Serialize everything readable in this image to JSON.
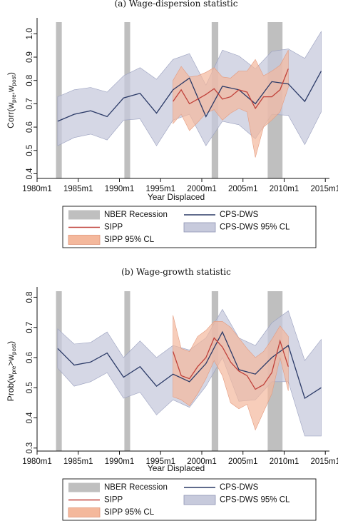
{
  "chart_data": [
    {
      "type": "line",
      "title": "(a) Wage-dispersion statistic",
      "xlabel": "Year Displaced",
      "ylabel_parts": [
        "Corr(w",
        "pre",
        ",w",
        "post",
        ")"
      ],
      "xlim": [
        1980,
        2015.5
      ],
      "ylim": [
        0.38,
        1.05
      ],
      "xticks": [
        1980,
        1985,
        1990,
        1995,
        2000,
        2005,
        2010,
        2015
      ],
      "xtick_labels": [
        "1980m1",
        "1985m1",
        "1990m1",
        "1995m1",
        "2000m1",
        "2005m1",
        "2010m1",
        "2015m1"
      ],
      "yticks": [
        0.4,
        0.5,
        0.6,
        0.7,
        0.8,
        0.9,
        1.0
      ],
      "ytick_labels": [
        "0.4",
        "0.5",
        "0.6",
        "0.7",
        "0.8",
        "0.9",
        "1.0"
      ],
      "recessions": [
        [
          1982.3,
          1983.0
        ],
        [
          1990.6,
          1991.3
        ],
        [
          2001.2,
          2002.0
        ],
        [
          2008.0,
          2009.8
        ]
      ],
      "series": [
        {
          "name": "CPS-DWS",
          "role": "line",
          "color": "#2b3a67",
          "x": [
            1982.5,
            1984.5,
            1986.5,
            1988.5,
            1990.5,
            1992.5,
            1994.5,
            1996.5,
            1998.5,
            2000.5,
            2002.5,
            2004.5,
            2006.5,
            2008.5,
            2010.5,
            2012.5,
            2014.5
          ],
          "y": [
            0.625,
            0.655,
            0.67,
            0.645,
            0.725,
            0.745,
            0.66,
            0.76,
            0.81,
            0.645,
            0.775,
            0.76,
            0.7,
            0.795,
            0.785,
            0.71,
            0.84
          ],
          "lower": [
            0.52,
            0.555,
            0.57,
            0.545,
            0.63,
            0.635,
            0.52,
            0.63,
            0.655,
            0.52,
            0.625,
            0.61,
            0.55,
            0.655,
            0.65,
            0.525,
            0.665
          ],
          "upper": [
            0.73,
            0.76,
            0.77,
            0.75,
            0.82,
            0.855,
            0.805,
            0.89,
            0.915,
            0.78,
            0.93,
            0.905,
            0.85,
            0.925,
            0.935,
            0.895,
            1.01
          ]
        },
        {
          "name": "SIPP",
          "role": "line",
          "color": "#c0413a",
          "x": [
            1996.5,
            1997.5,
            1998.5,
            1999.5,
            2000.5,
            2001.5,
            2002.5,
            2003.5,
            2004.5,
            2005.5,
            2006.5,
            2007.5,
            2008.5,
            2009.5,
            2010.5
          ],
          "y": [
            0.71,
            0.76,
            0.7,
            0.72,
            0.74,
            0.765,
            0.72,
            0.73,
            0.76,
            0.75,
            0.68,
            0.73,
            0.73,
            0.76,
            0.85
          ],
          "lower": [
            0.615,
            0.655,
            0.585,
            0.62,
            0.66,
            0.675,
            0.63,
            0.66,
            0.68,
            0.665,
            0.47,
            0.6,
            0.63,
            0.665,
            0.77
          ],
          "upper": [
            0.8,
            0.86,
            0.815,
            0.82,
            0.835,
            0.855,
            0.815,
            0.81,
            0.84,
            0.84,
            0.89,
            0.82,
            0.84,
            0.865,
            0.93
          ]
        }
      ],
      "legend": [
        {
          "key": "nber",
          "label": "NBER Recession"
        },
        {
          "key": "cps",
          "label": "CPS-DWS"
        },
        {
          "key": "sipp",
          "label": "SIPP"
        },
        {
          "key": "cpsci",
          "label": "CPS-DWS 95% CL"
        },
        {
          "key": "sippci",
          "label": "SIPP 95% CL"
        }
      ]
    },
    {
      "type": "line",
      "title": "(b) Wage-growth statistic",
      "xlabel": "Year Displaced",
      "ylabel_parts": [
        "Prob(w",
        "pre",
        ">w",
        "post",
        ")"
      ],
      "xlim": [
        1980,
        2015.5
      ],
      "ylim": [
        0.29,
        0.82
      ],
      "xticks": [
        1980,
        1985,
        1990,
        1995,
        2000,
        2005,
        2010,
        2015
      ],
      "xtick_labels": [
        "1980m1",
        "1985m1",
        "1990m1",
        "1995m1",
        "2000m1",
        "2005m1",
        "2010m1",
        "2015m1"
      ],
      "yticks": [
        0.3,
        0.4,
        0.5,
        0.6,
        0.7,
        0.8
      ],
      "ytick_labels": [
        "0.3",
        "0.4",
        "0.5",
        "0.6",
        "0.7",
        "0.8"
      ],
      "recessions": [
        [
          1982.3,
          1983.0
        ],
        [
          1990.6,
          1991.3
        ],
        [
          2001.2,
          2002.0
        ],
        [
          2008.0,
          2009.8
        ]
      ],
      "series": [
        {
          "name": "CPS-DWS",
          "role": "line",
          "color": "#2b3a67",
          "x": [
            1982.5,
            1984.5,
            1986.5,
            1988.5,
            1990.5,
            1992.5,
            1994.5,
            1996.5,
            1998.5,
            2000.5,
            2002.5,
            2004.5,
            2006.5,
            2008.5,
            2010.5,
            2012.5,
            2014.5
          ],
          "y": [
            0.63,
            0.575,
            0.585,
            0.615,
            0.535,
            0.57,
            0.505,
            0.545,
            0.52,
            0.58,
            0.685,
            0.56,
            0.545,
            0.6,
            0.64,
            0.465,
            0.5
          ],
          "lower": [
            0.565,
            0.505,
            0.52,
            0.55,
            0.465,
            0.485,
            0.41,
            0.46,
            0.435,
            0.505,
            0.6,
            0.455,
            0.46,
            0.52,
            0.52,
            0.34,
            0.34
          ],
          "upper": [
            0.695,
            0.645,
            0.65,
            0.685,
            0.6,
            0.655,
            0.6,
            0.64,
            0.625,
            0.665,
            0.76,
            0.665,
            0.64,
            0.715,
            0.755,
            0.59,
            0.66
          ]
        },
        {
          "name": "SIPP",
          "role": "line",
          "color": "#c0413a",
          "x": [
            1996.5,
            1997.5,
            1998.5,
            1999.5,
            2000.5,
            2001.5,
            2002.5,
            2003.5,
            2004.5,
            2005.5,
            2006.5,
            2007.5,
            2008.5,
            2009.5,
            2010.5
          ],
          "y": [
            0.62,
            0.54,
            0.53,
            0.57,
            0.6,
            0.665,
            0.635,
            0.585,
            0.555,
            0.54,
            0.495,
            0.51,
            0.55,
            0.655,
            0.57
          ],
          "lower": [
            0.47,
            0.46,
            0.44,
            0.48,
            0.53,
            0.59,
            0.54,
            0.45,
            0.43,
            0.445,
            0.36,
            0.42,
            0.48,
            0.6,
            0.49
          ],
          "upper": [
            0.74,
            0.63,
            0.62,
            0.67,
            0.69,
            0.72,
            0.72,
            0.7,
            0.665,
            0.63,
            0.6,
            0.62,
            0.66,
            0.705,
            0.67
          ]
        }
      ],
      "legend": [
        {
          "key": "nber",
          "label": "NBER Recession"
        },
        {
          "key": "cps",
          "label": "CPS-DWS"
        },
        {
          "key": "sipp",
          "label": "SIPP"
        },
        {
          "key": "cpsci",
          "label": "CPS-DWS 95% CL"
        },
        {
          "key": "sippci",
          "label": "SIPP 95% CL"
        }
      ]
    }
  ],
  "colors": {
    "cps_line": "#2b3a67",
    "cps_band": "#c7cadc",
    "sipp_line": "#c0413a",
    "sipp_band": "#f4b89c",
    "recession": "#bfbfbf"
  }
}
